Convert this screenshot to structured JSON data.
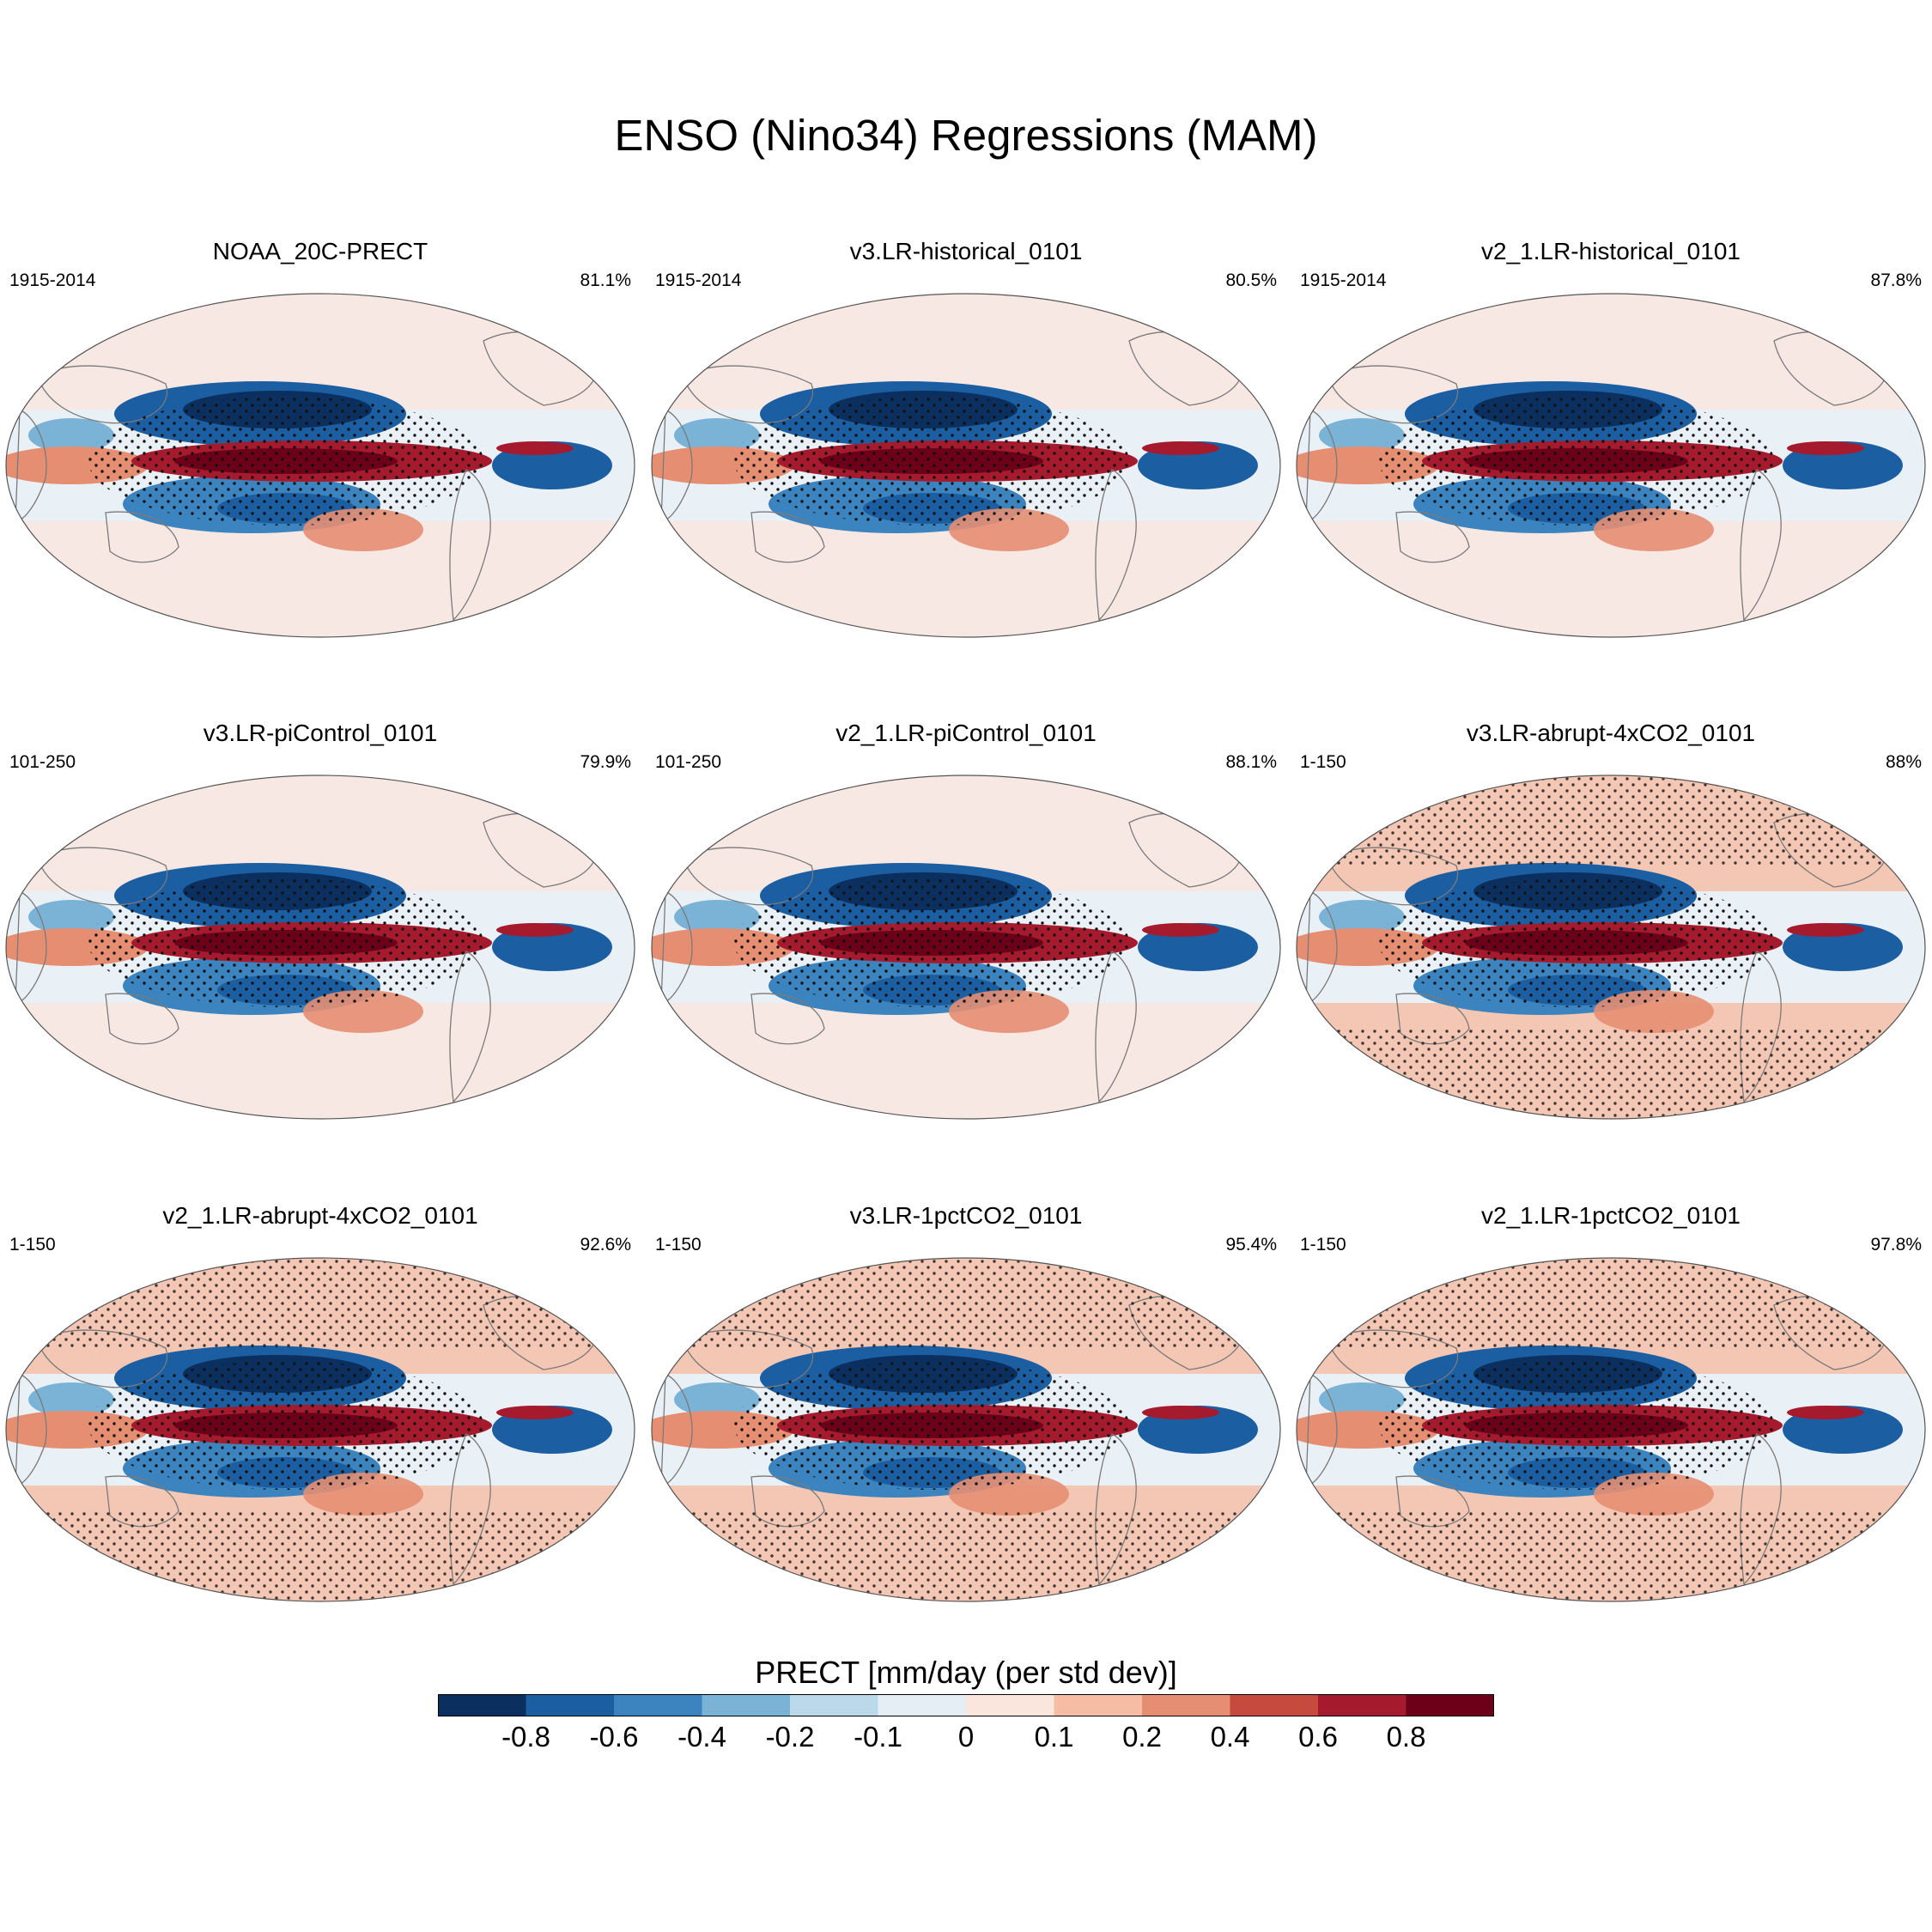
{
  "figure": {
    "title": "ENSO (Nino34) Regressions (MAM)",
    "colorbar_label": "PRECT [mm/day (per std dev)]"
  },
  "colorbar": {
    "ticks": [
      "-0.8",
      "-0.6",
      "-0.4",
      "-0.2",
      "-0.1",
      "0",
      "0.1",
      "0.2",
      "0.4",
      "0.6",
      "0.8"
    ],
    "colors": [
      "#0b2f5e",
      "#1c5ea2",
      "#3b84bf",
      "#7bb3d6",
      "#bcd9ea",
      "#e5eef4",
      "#fbe6de",
      "#f6bda4",
      "#e58e72",
      "#c74a3f",
      "#a51a2c",
      "#6c0019"
    ]
  },
  "panels": [
    {
      "title": "NOAA_20C-PRECT",
      "period": "1915-2014",
      "pct": "81.1%"
    },
    {
      "title": "v3.LR-historical_0101",
      "period": "1915-2014",
      "pct": "80.5%"
    },
    {
      "title": "v2_1.LR-historical_0101",
      "period": "1915-2014",
      "pct": "87.8%"
    },
    {
      "title": "v3.LR-piControl_0101",
      "period": "101-250",
      "pct": "79.9%"
    },
    {
      "title": "v2_1.LR-piControl_0101",
      "period": "101-250",
      "pct": "88.1%"
    },
    {
      "title": "v3.LR-abrupt-4xCO2_0101",
      "period": "1-150",
      "pct": "88%"
    },
    {
      "title": "v2_1.LR-abrupt-4xCO2_0101",
      "period": "1-150",
      "pct": "92.6%"
    },
    {
      "title": "v3.LR-1pctCO2_0101",
      "period": "1-150",
      "pct": "95.4%"
    },
    {
      "title": "v2_1.LR-1pctCO2_0101",
      "period": "1-150",
      "pct": "97.8%"
    }
  ]
}
